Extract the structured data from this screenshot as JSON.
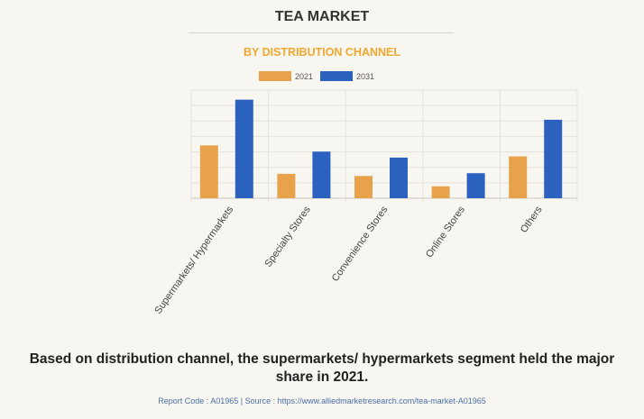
{
  "chart_data": {
    "type": "bar",
    "title": "TEA MARKET",
    "subtitle": "BY DISTRIBUTION CHANNEL",
    "categories": [
      "Supermarkets/ Hypermarkets",
      "Specialty Stores",
      "Convenience Stores",
      "Online Stores",
      "Others"
    ],
    "series": [
      {
        "name": "2021",
        "color": "#e8a24c",
        "values": [
          3.42,
          1.58,
          1.44,
          0.77,
          2.71
        ]
      },
      {
        "name": "2031",
        "color": "#2b62c0",
        "values": [
          6.38,
          3.02,
          2.63,
          1.62,
          5.08
        ]
      }
    ],
    "ylim": [
      0,
      7
    ],
    "grid": true,
    "legend": "top"
  },
  "caption": "Based on distribution channel, the supermarkets/ hypermarkets segment held the major share in 2021.",
  "footer": "Report Code : A01965  |  Source : https://www.alliedmarketresearch.com/tea-market-A01965"
}
